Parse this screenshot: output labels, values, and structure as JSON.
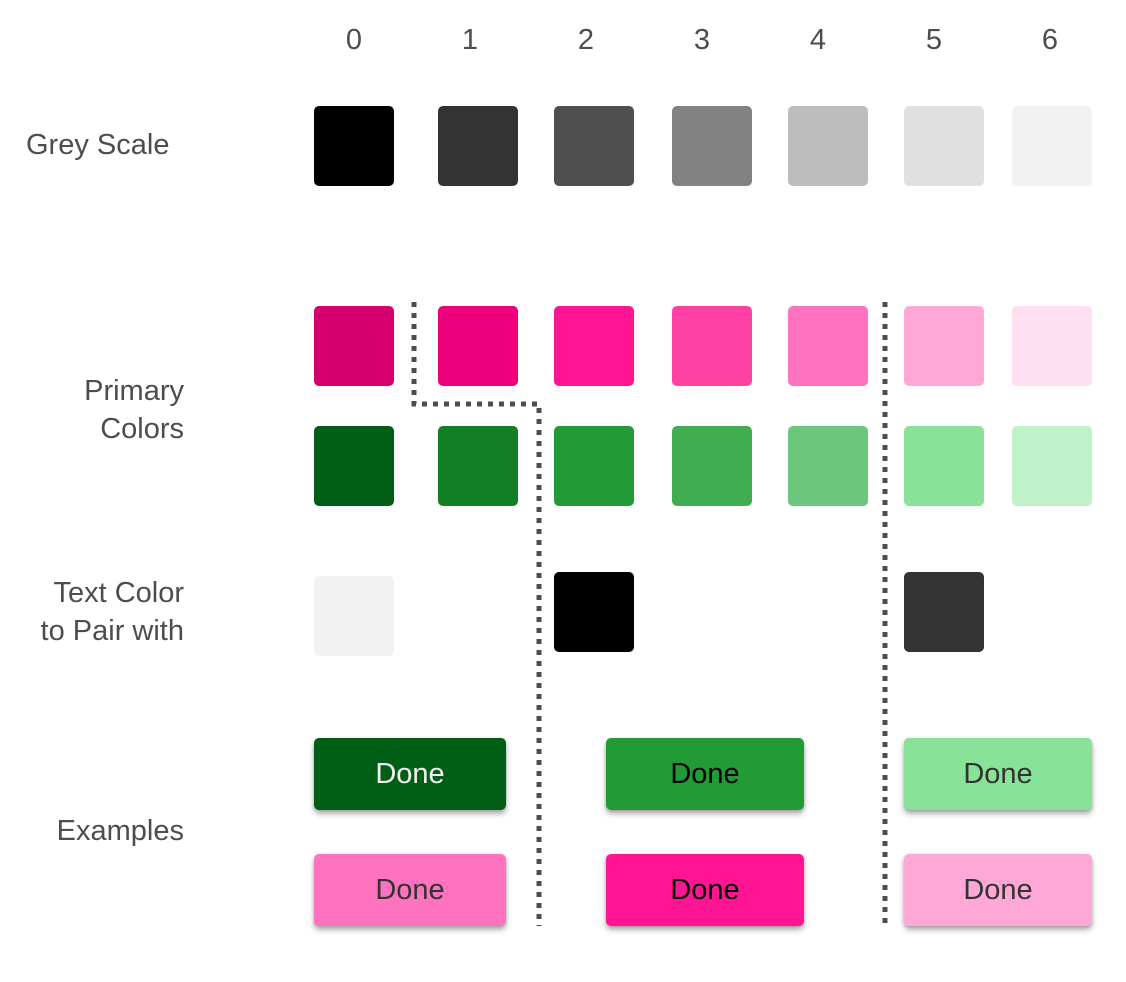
{
  "columns": [
    "0",
    "1",
    "2",
    "3",
    "4",
    "5",
    "6"
  ],
  "rows": {
    "grey_scale_label": "Grey Scale",
    "primary_colors_label_line1": "Primary",
    "primary_colors_label_line2": "Colors",
    "text_color_label_line1": "Text Color",
    "text_color_label_line2": "to Pair with",
    "examples_label": "Examples"
  },
  "grey_scale": [
    "#000000",
    "#333333",
    "#4f4f4f",
    "#828282",
    "#bdbdbd",
    "#e0e0e0",
    "#f2f2f2"
  ],
  "primary_pink": [
    "#d5006d",
    "#ee007d",
    "#ff1493",
    "#ff41a4",
    "#ff72bf",
    "#ffa8d8",
    "#ffe0f2"
  ],
  "primary_green": [
    "#005f15",
    "#127f25",
    "#229b36",
    "#41ad51",
    "#6ac77b",
    "#88e297",
    "#c0f2ca"
  ],
  "text_pairs": {
    "light": "#f2f2f2",
    "mid": "#000000",
    "dark": "#333333"
  },
  "examples": {
    "label": "Done",
    "green_dark_bg": "#005f15",
    "green_mid_bg": "#229b36",
    "green_light_bg": "#88e297",
    "pink_dark_bg": "#ff72bf",
    "pink_mid_bg": "#ff1493",
    "pink_light_bg": "#ffa8d8",
    "text_light": "#f2f2f2",
    "text_mid": "#000000",
    "text_dark": "#333333"
  }
}
